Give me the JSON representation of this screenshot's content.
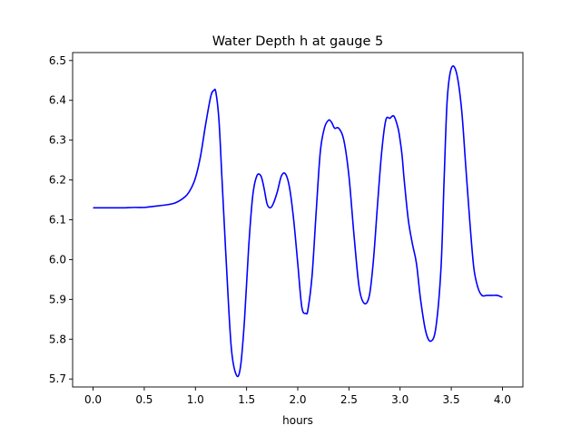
{
  "chart_data": {
    "type": "line",
    "title": "Water Depth h at gauge 5",
    "xlabel": "hours",
    "ylabel": "",
    "xlim": [
      -0.2,
      4.2
    ],
    "ylim": [
      5.68,
      6.52
    ],
    "xticks": [
      0.0,
      0.5,
      1.0,
      1.5,
      2.0,
      2.5,
      3.0,
      3.5,
      4.0
    ],
    "xtick_labels": [
      "0.0",
      "0.5",
      "1.0",
      "1.5",
      "2.0",
      "2.5",
      "3.0",
      "3.5",
      "4.0"
    ],
    "yticks": [
      5.7,
      5.8,
      5.9,
      6.0,
      6.1,
      6.2,
      6.3,
      6.4,
      6.5
    ],
    "ytick_labels": [
      "5.7",
      "5.8",
      "5.9",
      "6.0",
      "6.1",
      "6.2",
      "6.3",
      "6.4",
      "6.5"
    ],
    "grid": false,
    "line_color": "#0000ff",
    "series": [
      {
        "x": [
          0.0,
          0.1,
          0.2,
          0.3,
          0.4,
          0.5,
          0.6,
          0.7,
          0.8,
          0.9,
          0.95,
          1.0,
          1.05,
          1.1,
          1.15,
          1.18,
          1.2,
          1.23,
          1.26,
          1.3,
          1.35,
          1.4,
          1.44,
          1.48,
          1.52,
          1.56,
          1.6,
          1.64,
          1.67,
          1.7,
          1.73,
          1.76,
          1.8,
          1.84,
          1.88,
          1.92,
          1.96,
          2.0,
          2.04,
          2.08,
          2.1,
          2.14,
          2.18,
          2.22,
          2.26,
          2.3,
          2.33,
          2.36,
          2.4,
          2.45,
          2.5,
          2.55,
          2.6,
          2.65,
          2.7,
          2.74,
          2.78,
          2.82,
          2.86,
          2.9,
          2.94,
          2.98,
          3.0,
          3.02,
          3.04,
          3.08,
          3.12,
          3.16,
          3.2,
          3.25,
          3.3,
          3.35,
          3.4,
          3.43,
          3.46,
          3.5,
          3.55,
          3.6,
          3.64,
          3.68,
          3.72,
          3.76,
          3.8,
          3.85,
          3.9,
          3.95,
          4.0
        ],
        "y": [
          6.13,
          6.13,
          6.13,
          6.13,
          6.131,
          6.131,
          6.134,
          6.137,
          6.142,
          6.158,
          6.175,
          6.205,
          6.26,
          6.34,
          6.41,
          6.425,
          6.42,
          6.35,
          6.2,
          6.0,
          5.78,
          5.71,
          5.73,
          5.85,
          6.03,
          6.16,
          6.21,
          6.21,
          6.18,
          6.14,
          6.13,
          6.14,
          6.17,
          6.21,
          6.215,
          6.18,
          6.1,
          5.99,
          5.88,
          5.865,
          5.875,
          5.96,
          6.12,
          6.27,
          6.33,
          6.35,
          6.345,
          6.33,
          6.33,
          6.3,
          6.21,
          6.06,
          5.93,
          5.89,
          5.91,
          6.0,
          6.14,
          6.27,
          6.35,
          6.355,
          6.36,
          6.33,
          6.3,
          6.26,
          6.2,
          6.1,
          6.04,
          5.99,
          5.9,
          5.82,
          5.795,
          5.83,
          5.98,
          6.2,
          6.4,
          6.48,
          6.47,
          6.38,
          6.24,
          6.1,
          5.98,
          5.93,
          5.91,
          5.91,
          5.91,
          5.91,
          5.905
        ]
      }
    ]
  }
}
